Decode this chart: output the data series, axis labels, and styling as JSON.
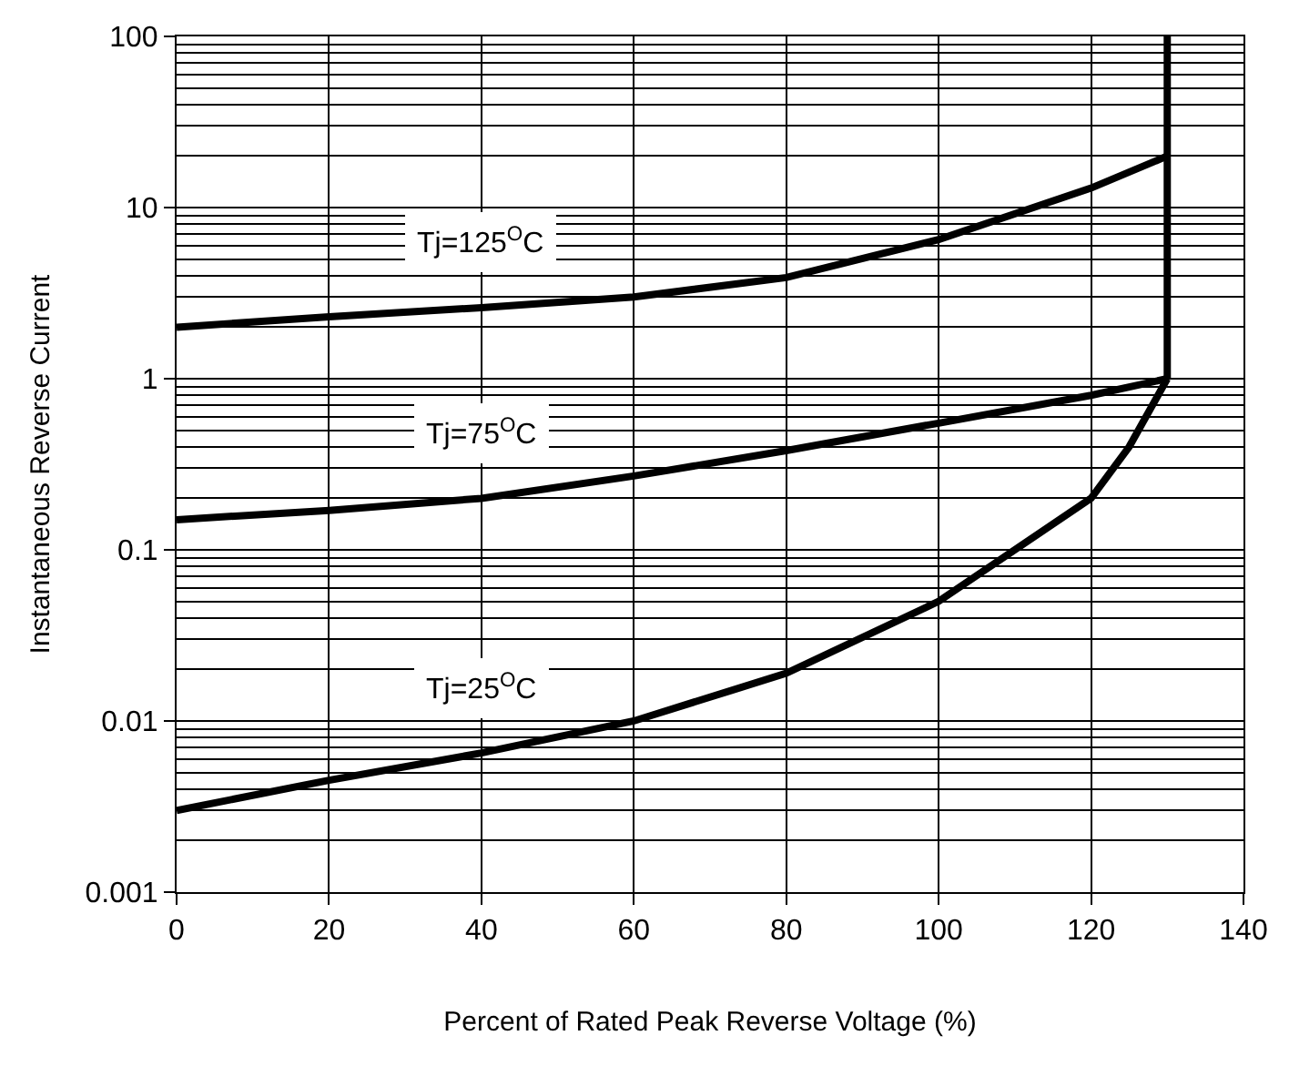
{
  "chart_data": {
    "type": "line",
    "xlabel": "Percent of Rated Peak Reverse Voltage (%)",
    "ylabel": "Instantaneous Reverse Current",
    "x": [
      0,
      20,
      40,
      60,
      80,
      100,
      120,
      130
    ],
    "series": [
      {
        "name": "Tj=125$^{O}$C",
        "color": "#000000",
        "values": [
          2,
          2.3,
          2.6,
          3.0,
          3.9,
          6.5,
          13,
          20
        ]
      },
      {
        "name": "Tj=75$^{O}$C",
        "color": "#000000",
        "values": [
          0.15,
          0.17,
          0.2,
          0.27,
          0.38,
          0.55,
          0.8,
          1
        ]
      },
      {
        "name": "Tj=25$^{O}$C",
        "color": "#000000",
        "x": [
          0,
          20,
          40,
          60,
          80,
          100,
          120,
          125,
          130
        ],
        "values": [
          0.003,
          0.0045,
          0.0065,
          0.01,
          0.019,
          0.05,
          0.2,
          0.4,
          1
        ]
      },
      {
        "color": "#000000",
        "x": [
          130,
          130
        ],
        "values": [
          1,
          100
        ]
      }
    ],
    "log": "y",
    "xlim": [
      0,
      140
    ],
    "xticks": [
      0,
      20,
      40,
      60,
      80,
      100,
      120,
      140
    ],
    "ylim": [
      0.001,
      100
    ],
    "yticks": [
      0.001,
      0.01,
      0.1,
      1,
      10,
      100
    ],
    "grid": true,
    "legend": false,
    "marker": "none",
    "line_style": "solid"
  }
}
